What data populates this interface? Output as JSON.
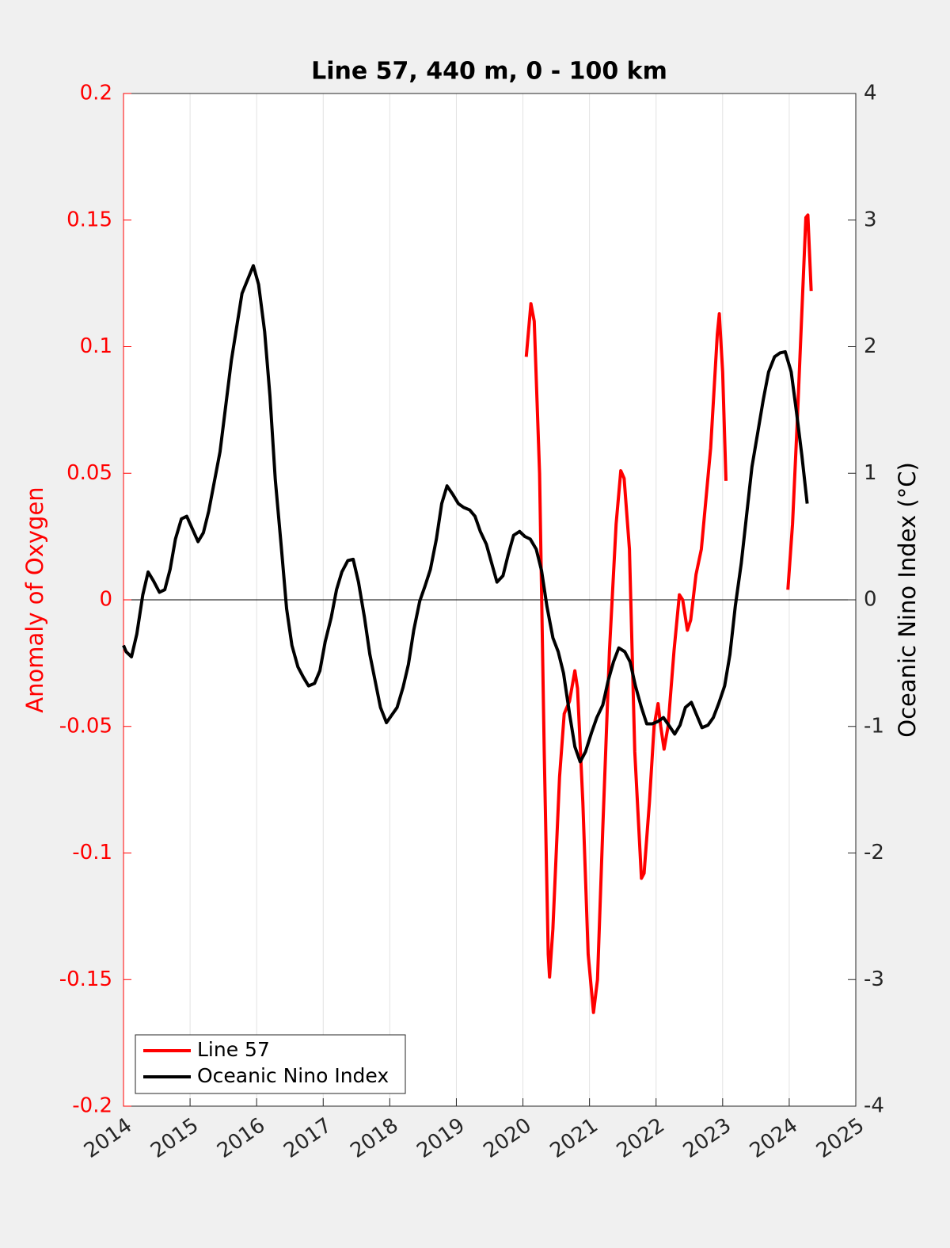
{
  "chart_data": {
    "type": "line",
    "title": "Line 57, 440 m, 0 - 100 km",
    "ylabel": "Anomaly of Oxygen",
    "y2label": "Oceanic Nino Index (°C)",
    "xlim": [
      2014,
      2025
    ],
    "xticks": [
      2014,
      2015,
      2016,
      2017,
      2018,
      2019,
      2020,
      2021,
      2022,
      2023,
      2024,
      2025
    ],
    "ylim": [
      -0.2,
      0.2
    ],
    "yticks": [
      -0.2,
      -0.15,
      -0.1,
      -0.05,
      0,
      0.05,
      0.1,
      0.15,
      0.2
    ],
    "y2lim": [
      -4,
      4
    ],
    "y2ticks": [
      -4,
      -3,
      -2,
      -1,
      0,
      1,
      2,
      3,
      4
    ],
    "hline": 0,
    "grid": "x",
    "legend": "southwest",
    "series": [
      {
        "name": "Line 57",
        "color": "#ff0000",
        "x": [
          2020.05,
          2020.12,
          2020.17,
          2020.25,
          2020.32,
          2020.38,
          2020.4,
          2020.45,
          2020.55,
          2020.62,
          2020.7,
          2020.78,
          2020.82,
          2020.9,
          2020.98,
          2021.06,
          2021.12,
          2021.2,
          2021.3,
          2021.4,
          2021.47,
          2021.52,
          2021.6,
          2021.68,
          2021.78,
          2021.82,
          2021.9,
          2021.97,
          2022.03,
          2022.07,
          2022.12,
          2022.18,
          2022.27,
          2022.35,
          2022.4,
          2022.47,
          2022.52,
          2022.6,
          2022.68,
          2022.75,
          2022.82,
          2022.92,
          2022.95,
          2023.0,
          2023.05,
          2023.5,
          2023.98,
          2024.05,
          2024.12,
          2024.2,
          2024.25,
          2024.28,
          2024.33
        ],
        "values": [
          0.096,
          0.117,
          0.11,
          0.05,
          -0.06,
          -0.14,
          -0.149,
          -0.13,
          -0.07,
          -0.045,
          -0.04,
          -0.028,
          -0.035,
          -0.08,
          -0.14,
          -0.163,
          -0.15,
          -0.09,
          -0.02,
          0.03,
          0.051,
          0.048,
          0.02,
          -0.06,
          -0.11,
          -0.108,
          -0.08,
          -0.05,
          -0.041,
          -0.05,
          -0.059,
          -0.05,
          -0.02,
          0.002,
          0,
          -0.012,
          -0.008,
          0.01,
          0.02,
          0.04,
          0.06,
          0.105,
          0.113,
          0.09,
          0.047,
          null,
          0.004,
          0.03,
          0.07,
          0.12,
          0.151,
          0.152,
          0.122
        ]
      },
      {
        "name": "Oceanic Nino Index",
        "color": "#000000",
        "axis": "y2",
        "x": [
          2014.0,
          2014.04,
          2014.12,
          2014.2,
          2014.29,
          2014.37,
          2014.45,
          2014.54,
          2014.62,
          2014.7,
          2014.78,
          2014.87,
          2014.95,
          2015.12,
          2015.2,
          2015.28,
          2015.45,
          2015.62,
          2015.78,
          2015.95,
          2016.03,
          2016.12,
          2016.2,
          2016.28,
          2016.37,
          2016.45,
          2016.53,
          2016.62,
          2016.7,
          2016.78,
          2016.87,
          2016.95,
          2017.03,
          2017.12,
          2017.2,
          2017.28,
          2017.37,
          2017.45,
          2017.53,
          2017.62,
          2017.7,
          2017.78,
          2017.86,
          2017.95,
          2018.03,
          2018.11,
          2018.2,
          2018.28,
          2018.36,
          2018.45,
          2018.53,
          2018.61,
          2018.7,
          2018.78,
          2018.86,
          2018.95,
          2019.03,
          2019.11,
          2019.2,
          2019.28,
          2019.36,
          2019.45,
          2019.53,
          2019.61,
          2019.7,
          2019.78,
          2019.86,
          2019.95,
          2020.03,
          2020.11,
          2020.2,
          2020.28,
          2020.36,
          2020.45,
          2020.53,
          2020.61,
          2020.7,
          2020.78,
          2020.86,
          2020.94,
          2021.03,
          2021.11,
          2021.2,
          2021.28,
          2021.36,
          2021.44,
          2021.53,
          2021.61,
          2021.69,
          2021.78,
          2021.86,
          2021.94,
          2022.03,
          2022.11,
          2022.19,
          2022.28,
          2022.36,
          2022.44,
          2022.53,
          2022.61,
          2022.69,
          2022.78,
          2022.86,
          2022.94,
          2023.03,
          2023.11,
          2023.19,
          2023.28,
          2023.36,
          2023.44,
          2023.53,
          2023.61,
          2023.69,
          2023.78,
          2023.86,
          2023.94,
          2024.03,
          2024.11,
          2024.19,
          2024.27
        ],
        "values": [
          -0.36,
          -0.41,
          -0.45,
          -0.27,
          0.04,
          0.22,
          0.15,
          0.06,
          0.08,
          0.24,
          0.48,
          0.64,
          0.66,
          0.46,
          0.53,
          0.7,
          1.17,
          1.89,
          2.42,
          2.64,
          2.49,
          2.12,
          1.61,
          0.95,
          0.42,
          -0.07,
          -0.36,
          -0.53,
          -0.61,
          -0.68,
          -0.66,
          -0.56,
          -0.33,
          -0.14,
          0.08,
          0.22,
          0.31,
          0.32,
          0.14,
          -0.14,
          -0.43,
          -0.64,
          -0.85,
          -0.97,
          -0.91,
          -0.85,
          -0.69,
          -0.51,
          -0.24,
          -0.01,
          0.11,
          0.24,
          0.48,
          0.76,
          0.9,
          0.83,
          0.76,
          0.73,
          0.71,
          0.66,
          0.54,
          0.44,
          0.29,
          0.14,
          0.19,
          0.36,
          0.51,
          0.54,
          0.5,
          0.48,
          0.4,
          0.23,
          -0.05,
          -0.3,
          -0.41,
          -0.58,
          -0.9,
          -1.16,
          -1.28,
          -1.2,
          -1.05,
          -0.93,
          -0.83,
          -0.64,
          -0.49,
          -0.38,
          -0.41,
          -0.49,
          -0.68,
          -0.85,
          -0.98,
          -0.98,
          -0.96,
          -0.93,
          -0.99,
          -1.06,
          -0.99,
          -0.85,
          -0.81,
          -0.91,
          -1.01,
          -0.99,
          -0.93,
          -0.82,
          -0.68,
          -0.43,
          -0.05,
          0.29,
          0.67,
          1.05,
          1.33,
          1.58,
          1.8,
          1.92,
          1.95,
          1.96,
          1.8,
          1.48,
          1.14,
          0.76
        ]
      }
    ]
  }
}
